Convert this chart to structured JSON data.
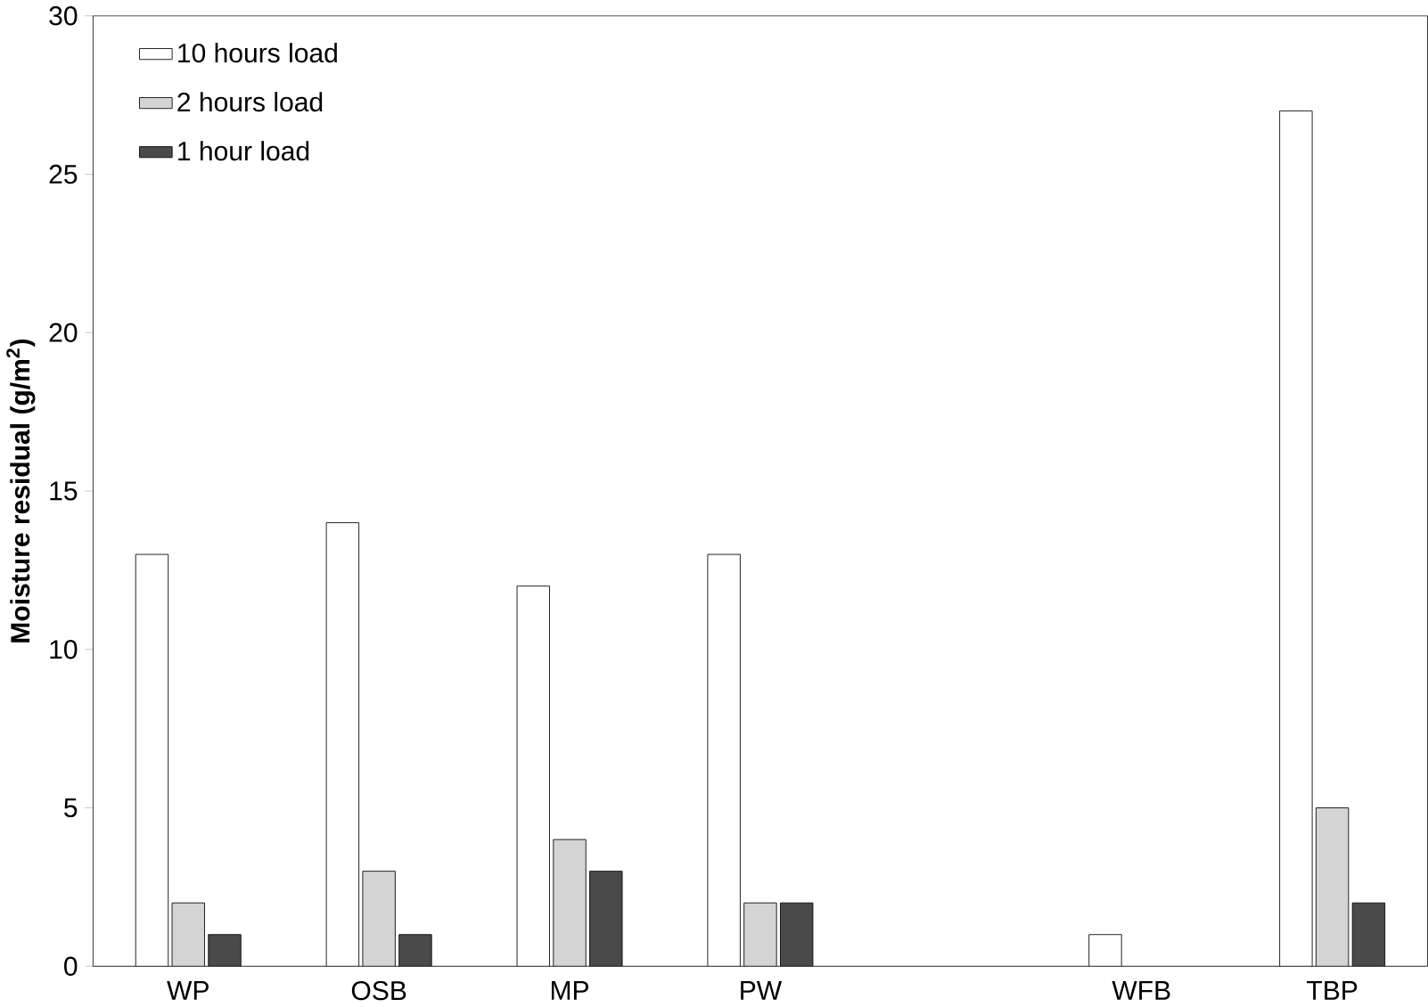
{
  "chart_data": {
    "type": "bar",
    "ylabel": "Moisture residual (g/m$^{2}$)",
    "categories": [
      "WP",
      "OSB",
      "MP",
      "PW",
      null,
      "WFB",
      "TBP"
    ],
    "series": [
      {
        "name": "10 hours load",
        "color": "#ffffff",
        "values": [
          13,
          14,
          12,
          13,
          null,
          1,
          27
        ]
      },
      {
        "name": "2 hours load",
        "color": "#d4d4d4",
        "values": [
          2,
          3,
          4,
          2,
          null,
          null,
          5
        ]
      },
      {
        "name": "1 hour load",
        "color": "#4a4a4a",
        "values": [
          1,
          1,
          3,
          2,
          null,
          null,
          2
        ]
      }
    ],
    "ylim": [
      0,
      30
    ],
    "yticks": [
      0,
      5,
      10,
      15,
      20,
      25,
      30
    ],
    "grid": false,
    "legend": "top left"
  }
}
